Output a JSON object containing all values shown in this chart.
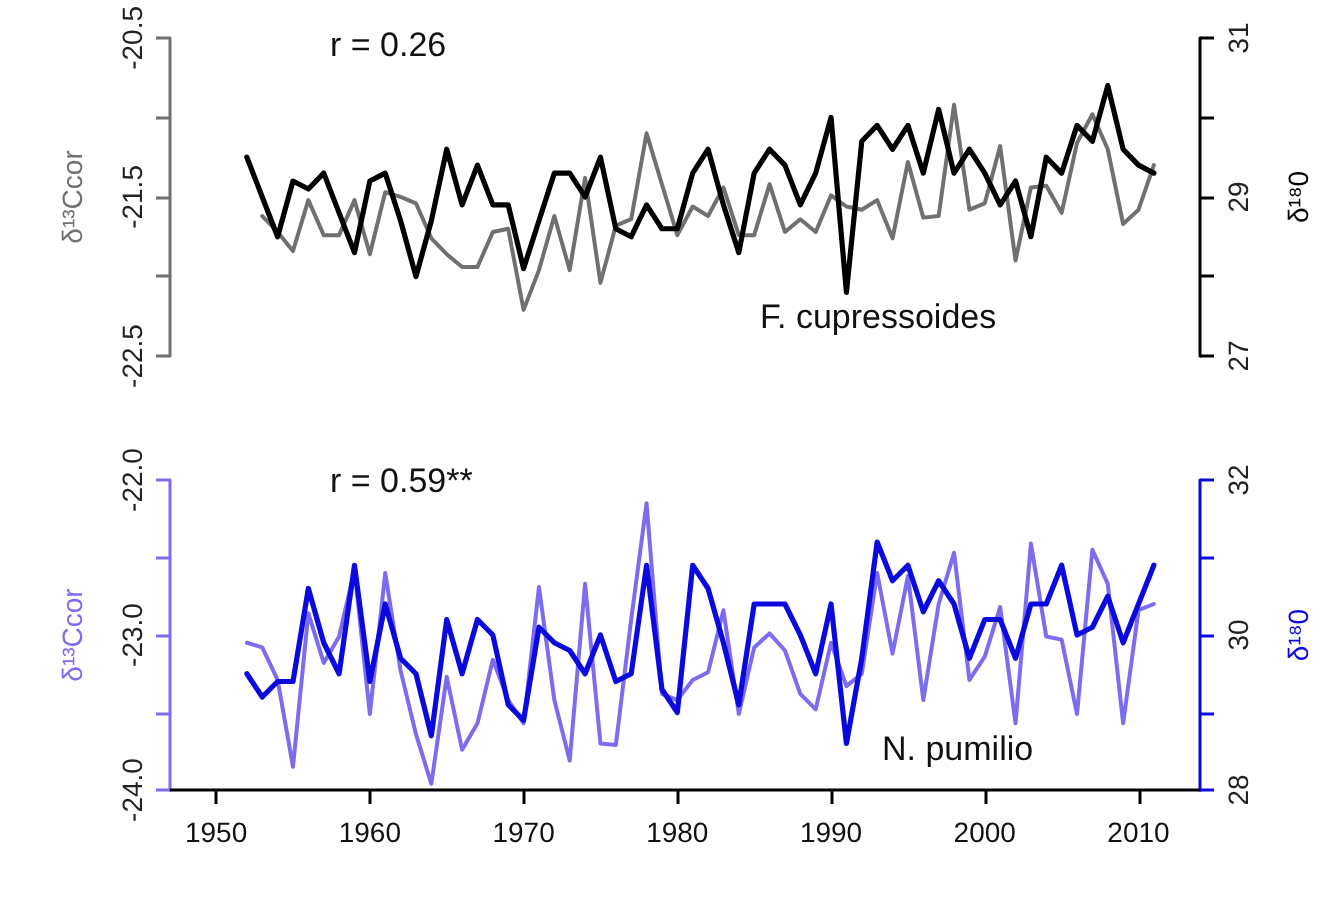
{
  "chart_data": [
    {
      "type": "line",
      "annotations": [
        "r = 0.26",
        "F. cupressoides"
      ],
      "ylabel": "δ¹³Ccor",
      "y2label": "δ¹⁸0",
      "x": [
        1952,
        1953,
        1954,
        1955,
        1956,
        1957,
        1958,
        1959,
        1960,
        1961,
        1962,
        1963,
        1964,
        1965,
        1966,
        1967,
        1968,
        1969,
        1970,
        1971,
        1972,
        1973,
        1974,
        1975,
        1976,
        1977,
        1978,
        1979,
        1980,
        1981,
        1982,
        1983,
        1984,
        1985,
        1986,
        1987,
        1988,
        1989,
        1990,
        1991,
        1992,
        1993,
        1994,
        1995,
        1996,
        1997,
        1998,
        1999,
        2000,
        2001,
        2002,
        2003,
        2004,
        2005,
        2006,
        2007,
        2008,
        2009,
        2010,
        2011
      ],
      "xlim": [
        1947,
        2014
      ],
      "xticks": [
        1950,
        1960,
        1970,
        1980,
        1990,
        2000,
        2010
      ],
      "tick_labels": "y",
      "ylim": [
        -22.5,
        -20.5
      ],
      "yticks": [
        -20.5,
        {
          "value": -21,
          "label": null
        },
        -21.5,
        {
          "value": -22,
          "label": null
        },
        -22.5
      ],
      "y2lim": [
        27,
        31
      ],
      "y2ticks": [
        27,
        {
          "value": 28,
          "label": null
        },
        29,
        {
          "value": 30,
          "label": null
        },
        31
      ],
      "grid": false,
      "marker": "none",
      "line_style": "solid",
      "series": [
        {
          "color": "#707070",
          "values": [
            null,
            -21.62,
            -21.72,
            -21.84,
            -21.52,
            -21.74,
            -21.74,
            -21.52,
            -21.86,
            -21.47,
            -21.5,
            -21.54,
            -21.76,
            -21.86,
            -21.94,
            -21.94,
            -21.72,
            -21.7,
            -22.21,
            -21.96,
            -21.62,
            -21.96,
            -21.38,
            -22.04,
            -21.68,
            -21.64,
            -21.1,
            -21.42,
            -21.74,
            -21.56,
            -21.62,
            -21.44,
            -21.74,
            -21.74,
            -21.42,
            -21.72,
            -21.64,
            -21.72,
            -21.49,
            -21.56,
            -21.58,
            -21.52,
            -21.76,
            -21.28,
            -21.63,
            -21.62,
            -20.92,
            -21.58,
            -21.54,
            -21.18,
            -21.9,
            -21.44,
            -21.43,
            -21.6,
            -21.16,
            -20.98,
            -21.2,
            -21.67,
            -21.58,
            -21.3
          ]
        },
        {
          "color": "#000000",
          "axis": "y2",
          "values": [
            29.5,
            29.0,
            28.5,
            29.2,
            29.1,
            29.3,
            28.8,
            28.3,
            29.2,
            29.3,
            28.7,
            28.0,
            28.7,
            29.6,
            28.9,
            29.4,
            28.9,
            28.9,
            28.1,
            28.7,
            29.3,
            29.3,
            29.0,
            29.5,
            28.6,
            28.5,
            28.9,
            28.6,
            28.6,
            29.3,
            29.6,
            28.9,
            28.3,
            29.3,
            29.6,
            29.4,
            28.9,
            29.3,
            30.0,
            27.8,
            29.7,
            29.9,
            29.6,
            29.9,
            29.3,
            30.1,
            29.3,
            29.6,
            29.3,
            28.9,
            29.2,
            28.5,
            29.5,
            29.3,
            29.9,
            29.7,
            30.4,
            29.6,
            29.4,
            29.3
          ]
        }
      ]
    },
    {
      "type": "line",
      "annotations": [
        "r = 0.59**",
        "N. pumilio"
      ],
      "ylabel": "δ¹³Ccor",
      "y2label": "δ¹⁸0",
      "x": [
        1952,
        1953,
        1954,
        1955,
        1956,
        1957,
        1958,
        1959,
        1960,
        1961,
        1962,
        1963,
        1964,
        1965,
        1966,
        1967,
        1968,
        1969,
        1970,
        1971,
        1972,
        1973,
        1974,
        1975,
        1976,
        1977,
        1978,
        1979,
        1980,
        1981,
        1982,
        1983,
        1984,
        1985,
        1986,
        1987,
        1988,
        1989,
        1990,
        1991,
        1992,
        1993,
        1994,
        1995,
        1996,
        1997,
        1998,
        1999,
        2000,
        2001,
        2002,
        2003,
        2004,
        2005,
        2006,
        2007,
        2008,
        2009,
        2010,
        2011
      ],
      "xlim": [
        1947,
        2014
      ],
      "xticks": [
        1950,
        1960,
        1970,
        1980,
        1990,
        2000,
        2010
      ],
      "ylim": [
        -24,
        -22
      ],
      "yticks": [
        {
          "value": -24,
          "label": "-24.0"
        },
        {
          "value": -23.5,
          "label": null
        },
        {
          "value": -23,
          "label": "-23.0"
        },
        {
          "value": -22.5,
          "label": null
        },
        {
          "value": -22,
          "label": "-22.0"
        }
      ],
      "y2lim": [
        28,
        32
      ],
      "y2ticks": [
        28,
        {
          "value": 29,
          "label": null
        },
        30,
        {
          "value": 31,
          "label": null
        },
        32
      ],
      "grid": false,
      "marker": "none",
      "line_style": "solid",
      "series": [
        {
          "color": "#7b6cf0",
          "values": [
            -23.05,
            -23.08,
            -23.29,
            -23.85,
            -22.86,
            -23.18,
            -23.01,
            -22.58,
            -23.51,
            -22.6,
            -23.23,
            -23.64,
            -23.96,
            -23.27,
            -23.74,
            -23.57,
            -23.16,
            -23.42,
            -23.57,
            -22.69,
            -23.42,
            -23.81,
            -22.67,
            -23.7,
            -23.71,
            -22.9,
            -22.15,
            -23.38,
            -23.42,
            -23.29,
            -23.24,
            -22.84,
            -23.51,
            -23.08,
            -22.99,
            -23.1,
            -23.38,
            -23.48,
            -23.05,
            -23.33,
            -23.25,
            -22.6,
            -23.12,
            -22.62,
            -23.42,
            -22.8,
            -22.47,
            -23.29,
            -23.14,
            -22.82,
            -23.57,
            -22.41,
            -23.01,
            -23.03,
            -23.51,
            -22.45,
            -22.67,
            -23.57,
            -22.84,
            -22.8
          ]
        },
        {
          "color": "#0a0ae0",
          "axis": "y2",
          "values": [
            29.5,
            29.2,
            29.4,
            29.4,
            30.6,
            29.9,
            29.5,
            30.9,
            29.4,
            30.4,
            29.7,
            29.5,
            28.7,
            30.2,
            29.5,
            30.2,
            30.0,
            29.1,
            28.9,
            30.1,
            29.9,
            29.8,
            29.5,
            30.0,
            29.4,
            29.5,
            30.9,
            29.3,
            29.0,
            30.9,
            30.6,
            29.9,
            29.1,
            30.4,
            30.4,
            30.4,
            30.0,
            29.5,
            30.4,
            28.6,
            29.7,
            31.2,
            30.7,
            30.9,
            30.3,
            30.7,
            30.4,
            29.7,
            30.2,
            30.2,
            29.7,
            30.4,
            30.4,
            30.9,
            30.0,
            30.1,
            30.5,
            29.9,
            30.4,
            30.9
          ]
        }
      ]
    }
  ]
}
